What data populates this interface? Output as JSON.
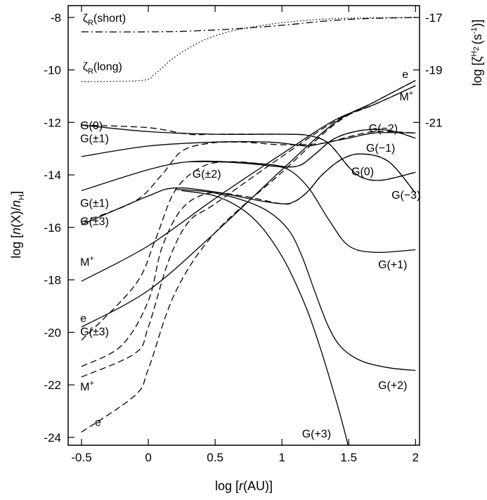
{
  "chart_data": {
    "type": "line",
    "xlabel": "log [r(AU)]",
    "xlabel_parts": {
      "pre": "log [",
      "var": "r",
      "post": "(AU)]"
    },
    "ylabel": "log [n(X)/nH]",
    "ylabel_parts": {
      "pre": "log [",
      "n": "n",
      "mid": "(X)/",
      "n2": "n",
      "sub": "H",
      "post": "]"
    },
    "y2label": "log [ζH2 (s-1)]",
    "y2label_parts": {
      "pre": "log [",
      "zeta": "ζ",
      "sup": "H",
      "supsub": "2",
      "unit": "(s",
      "unitsup": "-1",
      "post": ")]"
    },
    "xlim": [
      -0.6,
      2.03
    ],
    "ylim": [
      -24.3,
      -7.55
    ],
    "x_ticks": [
      -0.5,
      0,
      0.5,
      1,
      1.5,
      2
    ],
    "x_tick_labels": [
      "-0.5",
      "0",
      "0.5",
      "1",
      "1.5",
      "2"
    ],
    "y_ticks": [
      -24,
      -22,
      -20,
      -18,
      -16,
      -14,
      -12,
      -10,
      -8
    ],
    "y_tick_labels": [
      "-24",
      "-22",
      "-20",
      "-18",
      "-16",
      "-14",
      "-12",
      "-10",
      "-8"
    ],
    "y2_ticks": [
      -17,
      -19,
      -21
    ],
    "y2_tick_labels": [
      "-17",
      "-19",
      "-21"
    ],
    "y2_mapping_note": "right axis value v maps to left value v + 9",
    "series": [
      {
        "name": "ζR(short)",
        "style": "dashdot",
        "x": [
          -0.5,
          0,
          0.3,
          0.6,
          1,
          1.3,
          1.6,
          2
        ],
        "y": [
          -8.55,
          -8.55,
          -8.52,
          -8.45,
          -8.3,
          -8.15,
          -8.05,
          -8.0
        ]
      },
      {
        "name": "ζR(long)",
        "style": "dotted",
        "x": [
          -0.5,
          -0.05,
          0.05,
          0.2,
          0.4,
          0.6,
          0.8,
          1,
          1.3,
          1.6,
          2
        ],
        "y": [
          -10.45,
          -10.4,
          -10.15,
          -9.5,
          -8.9,
          -8.55,
          -8.35,
          -8.2,
          -8.07,
          -8.02,
          -8.0
        ]
      },
      {
        "name": "e (solid)",
        "style": "solid",
        "x": [
          -0.5,
          0,
          0.5,
          1,
          1.4,
          1.7,
          2
        ],
        "y": [
          -19.8,
          -18.4,
          -16.2,
          -13.8,
          -12,
          -11.2,
          -10.4
        ]
      },
      {
        "name": "e (dashed)",
        "style": "dashed",
        "x": [
          -0.5,
          -0.1,
          0,
          0.2,
          0.5,
          1,
          1.4,
          1.7,
          2
        ],
        "y": [
          -23.8,
          -22.4,
          -21.4,
          -18.5,
          -16.2,
          -13.9,
          -12.05,
          -11.2,
          -10.4
        ]
      },
      {
        "name": "M+ (solid)",
        "style": "solid",
        "x": [
          -0.5,
          0,
          0.5,
          1,
          1.4,
          1.7,
          2
        ],
        "y": [
          -18.05,
          -16.7,
          -14.9,
          -13.2,
          -11.9,
          -11.3,
          -10.6
        ]
      },
      {
        "name": "M+ (dashed)",
        "style": "dashed",
        "x": [
          -0.5,
          -0.1,
          0,
          0.15,
          0.3,
          0.5,
          1,
          1.4,
          1.7,
          2
        ],
        "y": [
          -21.7,
          -20.8,
          -19.8,
          -17.3,
          -15.8,
          -15.1,
          -13.3,
          -11.95,
          -11.3,
          -10.6
        ]
      },
      {
        "name": "G(0) (solid)",
        "style": "solid",
        "x": [
          -0.5,
          0,
          0.5,
          1,
          1.2,
          1.35,
          1.5,
          1.6,
          1.75,
          2
        ],
        "y": [
          -12.1,
          -12.35,
          -12.45,
          -12.45,
          -12.5,
          -12.8,
          -13.7,
          -14.1,
          -14.2,
          -13.9
        ]
      },
      {
        "name": "G(0) (dashed)",
        "style": "dashed",
        "x": [
          -0.5,
          0,
          0.3,
          0.5,
          1,
          1.2,
          1.35,
          1.5,
          1.6,
          1.75,
          2
        ],
        "y": [
          -12.1,
          -12.2,
          -12.45,
          -12.45,
          -12.45,
          -12.5,
          -12.8,
          -13.7,
          -14.1,
          -14.2,
          -13.9
        ]
      },
      {
        "name": "G(±1) upper (solid)",
        "style": "solid",
        "x": [
          -0.5,
          0,
          0.5,
          0.9,
          1.1,
          1.2,
          1.3,
          1.5,
          1.7,
          2
        ],
        "y": [
          -13.3,
          -12.9,
          -12.75,
          -12.75,
          -12.85,
          -12.9,
          -12.8,
          -12.6,
          -12.4,
          -12.4
        ]
      },
      {
        "name": "G(±1) (dashed)",
        "style": "dashed",
        "x": [
          -0.5,
          -0.1,
          0.1,
          0.25,
          0.45,
          0.7,
          1,
          1.3,
          1.5,
          1.7,
          2
        ],
        "y": [
          -15.8,
          -15.0,
          -14.0,
          -13.1,
          -12.8,
          -12.75,
          -12.85,
          -12.8,
          -12.55,
          -12.35,
          -12.4
        ]
      },
      {
        "name": "G(±2) (solid)",
        "style": "solid",
        "x": [
          -0.5,
          0,
          0.3,
          0.6,
          0.9,
          1.05,
          1.15,
          1.25,
          1.4,
          1.6,
          1.8,
          2
        ],
        "y": [
          -14.6,
          -13.8,
          -13.5,
          -13.5,
          -13.6,
          -13.7,
          -13.6,
          -13.2,
          -12.6,
          -12.3,
          -12.3,
          -12.6
        ]
      },
      {
        "name": "G(±2) (dashed)",
        "style": "dashed",
        "x": [
          -0.5,
          -0.1,
          0.05,
          0.2,
          0.4,
          0.6,
          0.9,
          1.05,
          1.15,
          1.25,
          1.4,
          1.6,
          1.8,
          2
        ],
        "y": [
          -20.3,
          -18.2,
          -16.5,
          -14.6,
          -13.7,
          -13.5,
          -13.6,
          -13.7,
          -13.6,
          -13.2,
          -12.6,
          -12.3,
          -12.3,
          -12.6
        ]
      },
      {
        "name": "G(±3) (solid)",
        "style": "solid",
        "x": [
          -0.5,
          0,
          0.2,
          0.5,
          0.8,
          1.0,
          1.1,
          1.2,
          1.3,
          1.45,
          1.6,
          1.8,
          2
        ],
        "y": [
          -15.9,
          -14.8,
          -14.5,
          -14.65,
          -14.95,
          -15.1,
          -15.0,
          -14.6,
          -14.0,
          -13.4,
          -13.2,
          -13.5,
          -14.7
        ]
      },
      {
        "name": "G(±3) (dashed)",
        "style": "dashed",
        "x": [
          -0.5,
          -0.2,
          0,
          0.1,
          0.25,
          0.45,
          0.7,
          1.0,
          1.1,
          1.2,
          1.3,
          1.45,
          1.6,
          1.8,
          2
        ],
        "y": [
          -21.3,
          -20.5,
          -18.8,
          -16.8,
          -15.3,
          -14.7,
          -14.8,
          -15.1,
          -15.0,
          -14.6,
          -14.0,
          -13.4,
          -13.2,
          -13.5,
          -14.7
        ]
      },
      {
        "name": "G(+1)",
        "style": "solid",
        "x": [
          0.3,
          0.5,
          0.7,
          0.9,
          1.05,
          1.2,
          1.35,
          1.5,
          1.7,
          2
        ],
        "y": [
          -13.5,
          -13.5,
          -13.55,
          -13.65,
          -13.8,
          -14.5,
          -15.7,
          -16.7,
          -16.95,
          -16.85
        ]
      },
      {
        "name": "G(+2)",
        "style": "solid",
        "x": [
          0.2,
          0.45,
          0.7,
          0.9,
          1.05,
          1.15,
          1.25,
          1.35,
          1.45,
          1.6,
          1.8,
          2
        ],
        "y": [
          -14.55,
          -14.65,
          -14.95,
          -15.4,
          -16.1,
          -17.1,
          -18.5,
          -19.8,
          -20.6,
          -21.1,
          -21.35,
          -21.45
        ]
      },
      {
        "name": "G(+3)",
        "style": "solid",
        "x": [
          0.25,
          0.5,
          0.7,
          0.85,
          1.0,
          1.1,
          1.2,
          1.3,
          1.4,
          1.45,
          1.5
        ],
        "y": [
          -14.6,
          -14.8,
          -15.3,
          -16.0,
          -17.1,
          -18.1,
          -19.3,
          -20.8,
          -22.5,
          -23.4,
          -24.4
        ]
      }
    ],
    "labels": [
      {
        "text": "ζ",
        "sub": "R",
        "rest": "(short)",
        "x": -0.49,
        "y": -8.0
      },
      {
        "text": "ζ",
        "sub": "R",
        "rest": "(long)",
        "x": -0.49,
        "y": -9.85
      },
      {
        "text": "G(0)",
        "x": -0.51,
        "y": -12.1
      },
      {
        "text": "G(±1)",
        "x": -0.51,
        "y": -12.6
      },
      {
        "text": "G(±2)",
        "x": 0.33,
        "y": -13.95
      },
      {
        "text": "G(±1)",
        "x": -0.51,
        "y": -15.05
      },
      {
        "text": "G(±3)",
        "x": -0.51,
        "y": -15.75
      },
      {
        "text": "M",
        "sup": "+",
        "x": -0.51,
        "y": -17.3
      },
      {
        "text": "e",
        "x": -0.51,
        "y": -19.45
      },
      {
        "text": "G(±3)",
        "x": -0.51,
        "y": -19.95
      },
      {
        "text": "M",
        "sup": "+",
        "x": -0.51,
        "y": -22.05
      },
      {
        "text": "e",
        "x": -0.4,
        "y": -23.4
      },
      {
        "text": "e",
        "x": 1.9,
        "y": -10.15
      },
      {
        "text": "M",
        "sup": "+",
        "x": 1.88,
        "y": -11.0
      },
      {
        "text": "G(−2)",
        "x": 1.65,
        "y": -12.2
      },
      {
        "text": "G(−1)",
        "x": 1.63,
        "y": -12.95
      },
      {
        "text": "G(0)",
        "x": 1.52,
        "y": -13.85
      },
      {
        "text": "G(−3)",
        "x": 1.82,
        "y": -14.75
      },
      {
        "text": "G(+1)",
        "x": 1.72,
        "y": -17.4
      },
      {
        "text": "G(+2)",
        "x": 1.72,
        "y": -22.0
      },
      {
        "text": "G(+3)",
        "x": 1.15,
        "y": -23.85
      }
    ]
  }
}
